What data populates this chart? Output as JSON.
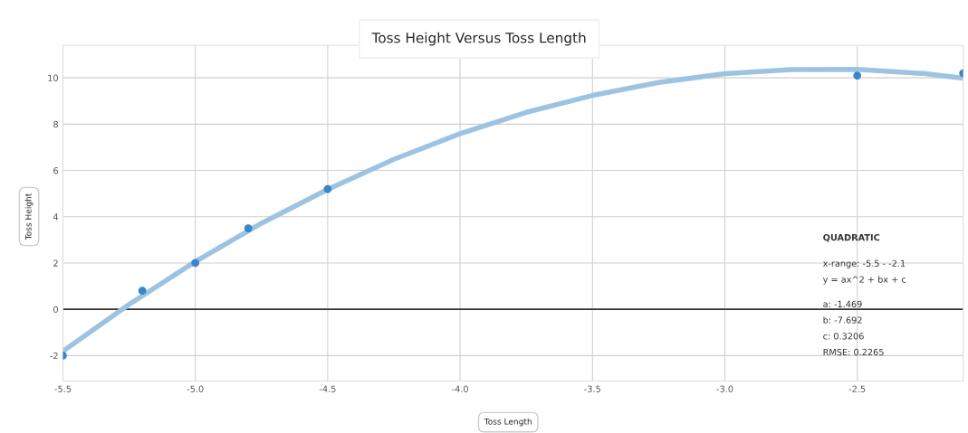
{
  "chart_data": {
    "type": "scatter",
    "title": "Toss Height Versus Toss Length",
    "xlabel": "Toss Length",
    "ylabel": "Toss Height",
    "series": [
      {
        "type": "line",
        "color": "#9dc3e3",
        "x": [
          -5.5,
          -5.25,
          -5.0,
          -4.75,
          -4.5,
          -4.25,
          -4.0,
          -3.75,
          -3.5,
          -3.25,
          -3.0,
          -2.75,
          -2.5,
          -2.25,
          -2.1
        ],
        "values": [
          -1.81,
          0.21,
          2.06,
          3.72,
          5.18,
          6.48,
          7.59,
          8.51,
          9.24,
          9.8,
          10.18,
          10.36,
          10.37,
          10.19,
          9.99
        ]
      },
      {
        "color": "#3a87c8",
        "marker": "circle",
        "x": [
          -5.5,
          -5.2,
          -5.0,
          -4.8,
          -4.5,
          -2.5,
          -2.1
        ],
        "values": [
          -2.0,
          0.8,
          2.0,
          3.5,
          5.2,
          10.1,
          10.2
        ]
      }
    ],
    "xlim": [
      -5.5,
      -2.1
    ],
    "ylim": [
      -3.1,
      11.4
    ],
    "xticks": [
      -5.5,
      {
        "value": -5,
        "label": "-5.0"
      },
      -4.5,
      {
        "value": -4,
        "label": "-4.0"
      },
      -3.5,
      {
        "value": -3,
        "label": "-3.0"
      },
      -2.5
    ],
    "yticks": [
      -2,
      0,
      2,
      4,
      6,
      8,
      10
    ],
    "grid": true,
    "ref_lines": [
      {
        "axis": "y",
        "value": 0,
        "color": "#333333"
      }
    ],
    "annotations": [
      "QUADRATIC",
      "x-range: -5.5 - -2.1",
      "y = ax^2 + bx + c",
      "a: -1.469",
      "b: -7.692",
      "c: 0.3206",
      "RMSE: 0.2265"
    ]
  }
}
